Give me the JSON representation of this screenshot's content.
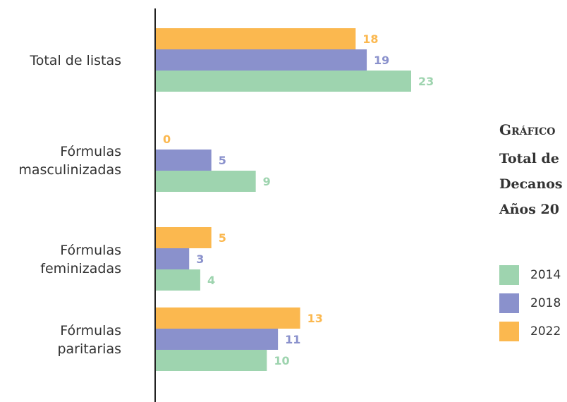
{
  "chart_data": {
    "type": "bar",
    "orientation": "horizontal",
    "categories": [
      [
        "Total de listas"
      ],
      [
        "Fórmulas",
        "masculinizadas"
      ],
      [
        "Fórmulas",
        "feminizadas"
      ],
      [
        "Fórmulas",
        "paritarias"
      ]
    ],
    "series": [
      {
        "name": "2022",
        "values": [
          18,
          0,
          5,
          13
        ],
        "color": "#FBB84F"
      },
      {
        "name": "2018",
        "values": [
          19,
          5,
          3,
          11
        ],
        "color": "#8A91CC"
      },
      {
        "name": "2014",
        "values": [
          23,
          9,
          4,
          10
        ],
        "color": "#9ED4AF"
      }
    ],
    "xlim": [
      0,
      23
    ],
    "title_lines": [
      "Gráfico",
      "Total de",
      "Decanos",
      "Años 20"
    ],
    "legend": {
      "placement": "right",
      "items": [
        {
          "label": "2014",
          "color": "#9ED4AF"
        },
        {
          "label": "2018",
          "color": "#8A91CC"
        },
        {
          "label": "2022",
          "color": "#FBB84F"
        }
      ]
    },
    "grid": false
  }
}
